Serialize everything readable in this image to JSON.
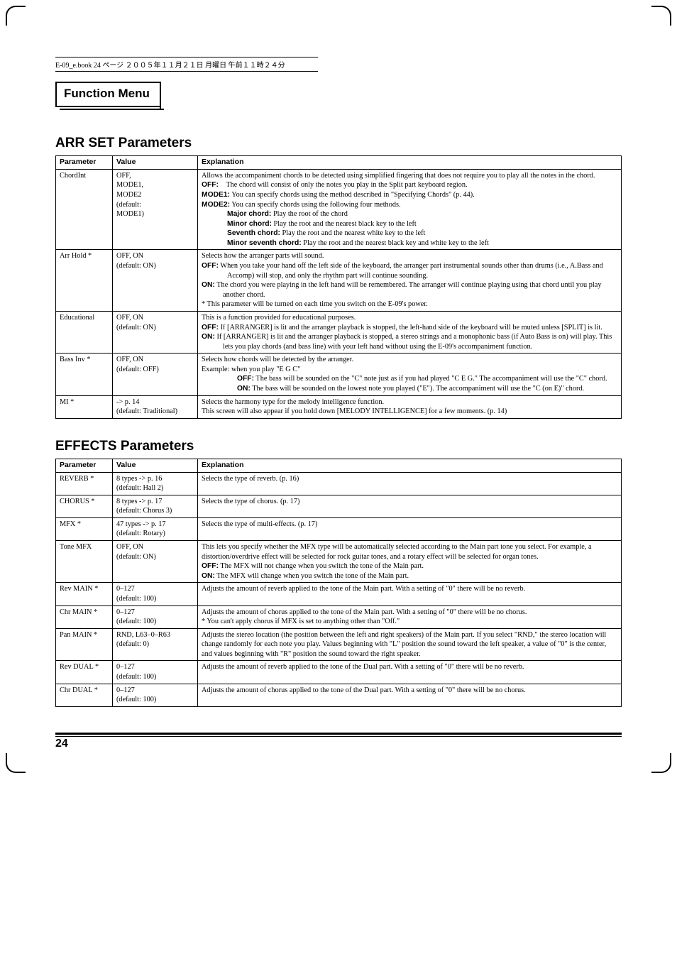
{
  "topbar": "E-09_e.book 24 ページ ２００５年１１月２１日 月曜日 午前１１時２４分",
  "fm_title": "Function Menu",
  "sections": {
    "arr": {
      "title": "ARR SET Parameters",
      "head": {
        "param": "Parameter",
        "value": "Value",
        "expl": "Explanation"
      },
      "rows": {
        "chordint": {
          "param": "ChordInt",
          "value": "OFF,\nMODE1,\nMODE2\n(default:\nMODE1)",
          "l1": "Allows the accompaniment chords to be detected using simplified fingering that does not require you to play all the notes in the chord.",
          "off_label": "OFF:",
          "off_txt": "The chord will consist of only the notes you play in the Split part keyboard region.",
          "mode1_label": "MODE1:",
          "mode1_txt": "You can specify chords using the method described in \"Specifying Chords\" (p. 44).",
          "mode2_label": "MODE2:",
          "mode2_txt": "You can specify chords using the following four methods.",
          "major_label": "Major chord:",
          "major_txt": "Play the root of the chord",
          "minor_label": "Minor chord:",
          "minor_txt": "Play the root and the nearest black key to the left",
          "seventh_label": "Seventh chord:",
          "seventh_txt": "Play the root and the nearest white key to the left",
          "ms_label": "Minor seventh chord:",
          "ms_txt": "Play the root and the nearest black key and white key to the left"
        },
        "arrhold": {
          "param": "Arr Hold *",
          "value": "OFF, ON\n(default: ON)",
          "l1": "Selects how the arranger parts will sound.",
          "off_label": "OFF:",
          "off_txt": "When you take your hand off the left side of the keyboard, the arranger part instrumental sounds other than drums (i.e., A.Bass and Accomp) will stop, and only the rhythm part will continue sounding.",
          "on_label": "ON:",
          "on_txt": "The chord you were playing in the left hand will be remembered. The arranger will continue playing using that chord until you play another chord.",
          "note": "* This parameter will be turned on each time you switch on the E-09's power."
        },
        "edu": {
          "param": "Educational",
          "value": "OFF, ON\n(default: ON)",
          "l1": "This is a function provided for educational purposes.",
          "off_label": "OFF:",
          "off_txt": "If [ARRANGER] is lit and the arranger playback is stopped, the left-hand side of the keyboard will be muted unless [SPLIT] is lit.",
          "on_label": "ON:",
          "on_txt": "If [ARRANGER] is lit and the arranger playback is stopped, a stereo strings and a monophonic bass (if Auto Bass is on) will play. This lets you play chords (and bass line) with your left hand without using the E-09's accompaniment function."
        },
        "bassinv": {
          "param": "Bass Inv *",
          "value": "OFF, ON\n(default: OFF)",
          "l1": "Selects how chords will be detected by the arranger.",
          "ex": "Example: when you play \"E G C\"",
          "off_label": "OFF:",
          "off_txt": "The bass will be sounded on the \"C\" note just as if you had played \"C E G.\" The accompaniment will use the \"C\" chord.",
          "on_label": "ON:",
          "on_txt": "The bass will be sounded on the lowest note you played (\"E\"). The accompaniment will use the \"C (on E)\" chord."
        },
        "mi": {
          "param": "MI *",
          "value": "-> p. 14\n(default: Traditional)",
          "l1": "Selects the harmony type for the melody intelligence function.",
          "l2": "This screen will also appear if you hold down [MELODY INTELLIGENCE] for a few moments. (p. 14)"
        }
      }
    },
    "fx": {
      "title": "EFFECTS Parameters",
      "head": {
        "param": "Parameter",
        "value": "Value",
        "expl": "Explanation"
      },
      "rows": {
        "reverb": {
          "param": "REVERB *",
          "value": "8 types -> p. 16\n(default: Hall 2)",
          "expl": "Selects the type of reverb. (p. 16)"
        },
        "chorus": {
          "param": "CHORUS *",
          "value": "8 types -> p. 17\n(default: Chorus 3)",
          "expl": "Selects the type of chorus. (p. 17)"
        },
        "mfx": {
          "param": "MFX *",
          "value": "47 types -> p. 17\n(default: Rotary)",
          "expl": "Selects the type of multi-effects. (p. 17)"
        },
        "tonemfx": {
          "param": "Tone MFX",
          "value": "OFF, ON\n(default: ON)",
          "l1": "This lets you specify whether the MFX type will be automatically selected according to the Main part tone you select. For example, a distortion/overdrive effect will be selected for rock guitar tones, and a rotary effect will be selected for organ tones.",
          "off_label": "OFF:",
          "off_txt": "The MFX will not change when you switch the tone of the Main part.",
          "on_label": "ON:",
          "on_txt": "The MFX will change when you switch the tone of the Main part."
        },
        "revmain": {
          "param": "Rev MAIN *",
          "value": "0–127\n(default: 100)",
          "expl": "Adjusts the amount of reverb applied to the tone of the Main part. With a setting of \"0\" there will be no reverb."
        },
        "chrmain": {
          "param": "Chr MAIN *",
          "value": "0–127\n(default: 100)",
          "l1": "Adjusts the amount of chorus applied to the tone of the Main part. With a setting of \"0\" there will be no chorus.",
          "l2": "* You can't apply chorus if MFX is set to anything other than \"Off.\""
        },
        "panmain": {
          "param": "Pan MAIN *",
          "value": "RND, L63–0–R63\n(default: 0)",
          "expl": "Adjusts the stereo location (the position between the left and right speakers) of the Main part. If you select \"RND,\" the stereo location will change randomly for each note you play. Values beginning with \"L\" position the sound toward the left speaker, a value of \"0\" is the center, and values beginning with \"R\" position the sound toward the right speaker."
        },
        "revdual": {
          "param": "Rev DUAL *",
          "value": "0–127\n(default: 100)",
          "expl": "Adjusts the amount of reverb applied to the tone of the Dual part. With a setting of \"0\" there will be no reverb."
        },
        "chrdual": {
          "param": "Chr DUAL *",
          "value": "0–127\n(default: 100)",
          "expl": "Adjusts the amount of chorus applied to the tone of the Dual part. With a setting of \"0\" there will be no chorus."
        }
      }
    }
  },
  "page_num": "24"
}
